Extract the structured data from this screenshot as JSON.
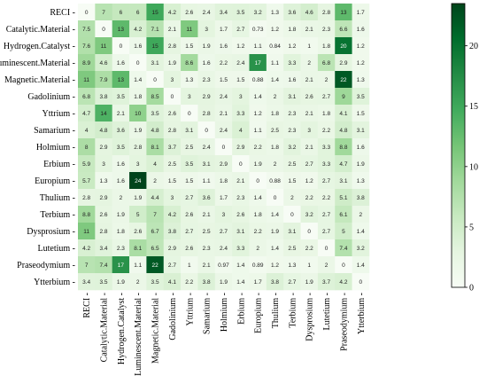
{
  "chart_data": {
    "type": "heatmap",
    "title": "",
    "xlabel": "",
    "ylabel": "",
    "labels": [
      "RECI",
      "Catalytic.Material",
      "Hydrogen.Catalyst",
      "Luminescent.Material",
      "Magnetic.Material",
      "Gadolinium",
      "Yttrium",
      "Samarium",
      "Holmium",
      "Erbium",
      "Europium",
      "Thulium",
      "Terbium",
      "Dysprosium",
      "Lutetium",
      "Praseodymium",
      "Ytterbium"
    ],
    "values": [
      [
        "0",
        "7",
        "6",
        "6",
        "15",
        "4.2",
        "2.6",
        "2.4",
        "3.4",
        "3.5",
        "3.2",
        "1.3",
        "3.6",
        "4.6",
        "2.8",
        "13",
        "1.7"
      ],
      [
        "7.5",
        "0",
        "13",
        "4.2",
        "7.1",
        "2.1",
        "11",
        "3",
        "1.7",
        "2.7",
        "0.73",
        "1.2",
        "1.8",
        "2.1",
        "2.3",
        "6.6",
        "1.6"
      ],
      [
        "7.6",
        "11",
        "0",
        "1.6",
        "15",
        "2.8",
        "1.5",
        "1.9",
        "1.6",
        "1.2",
        "1.1",
        "0.84",
        "1.2",
        "1",
        "1.8",
        "20",
        "1.2"
      ],
      [
        "8.9",
        "4.6",
        "1.6",
        "0",
        "3.1",
        "1.9",
        "8.6",
        "1.6",
        "2.2",
        "2.4",
        "17",
        "1.1",
        "3.3",
        "2",
        "6.8",
        "2.9",
        "1.2"
      ],
      [
        "11",
        "7.9",
        "13",
        "1.4",
        "0",
        "3",
        "1.3",
        "2.3",
        "1.5",
        "1.5",
        "0.88",
        "1.4",
        "1.6",
        "2.1",
        "2",
        "22",
        "1.3"
      ],
      [
        "6.8",
        "3.8",
        "3.5",
        "1.8",
        "8.5",
        "0",
        "3",
        "2.9",
        "2.4",
        "3",
        "1.4",
        "2",
        "3.1",
        "2.6",
        "2.7",
        "9",
        "3.5"
      ],
      [
        "4.7",
        "14",
        "2.1",
        "10",
        "3.5",
        "2.6",
        "0",
        "2.8",
        "2.1",
        "3.3",
        "1.2",
        "1.8",
        "2.3",
        "2.1",
        "1.8",
        "4.1",
        "1.5"
      ],
      [
        "4",
        "4.8",
        "3.6",
        "1.9",
        "4.8",
        "2.8",
        "3.1",
        "0",
        "2.4",
        "4",
        "1.1",
        "2.5",
        "2.3",
        "3",
        "2.2",
        "4.8",
        "3.1"
      ],
      [
        "8",
        "2.9",
        "3.5",
        "2.8",
        "8.1",
        "3.7",
        "2.5",
        "2.4",
        "0",
        "2.9",
        "2.2",
        "1.8",
        "3.2",
        "2.1",
        "3.3",
        "8.8",
        "1.6"
      ],
      [
        "5.9",
        "3",
        "1.6",
        "3",
        "4",
        "2.5",
        "3.5",
        "3.1",
        "2.9",
        "0",
        "1.9",
        "2",
        "2.5",
        "2.7",
        "3.3",
        "4.7",
        "1.9"
      ],
      [
        "5.7",
        "1.3",
        "1.6",
        "24",
        "2",
        "1.5",
        "1.5",
        "1.1",
        "1.8",
        "2.1",
        "0",
        "0.88",
        "1.5",
        "1.2",
        "2.7",
        "3.1",
        "1.3"
      ],
      [
        "2.8",
        "2.9",
        "2",
        "1.9",
        "4.4",
        "3",
        "2.7",
        "3.6",
        "1.7",
        "2.3",
        "1.4",
        "0",
        "2",
        "2.2",
        "2.2",
        "5.1",
        "3.8"
      ],
      [
        "8.8",
        "2.6",
        "1.9",
        "5",
        "7",
        "4.2",
        "2.6",
        "2.1",
        "3",
        "2.6",
        "1.8",
        "1.4",
        "0",
        "3.2",
        "2.7",
        "6.1",
        "2"
      ],
      [
        "11",
        "2.8",
        "1.8",
        "2.6",
        "6.7",
        "3.8",
        "2.7",
        "2.5",
        "2.7",
        "3.1",
        "2.2",
        "1.9",
        "3.1",
        "0",
        "2.7",
        "5",
        "1.4"
      ],
      [
        "4.2",
        "3.4",
        "2.3",
        "8.1",
        "6.5",
        "2.9",
        "2.6",
        "2.3",
        "2.4",
        "3.3",
        "2",
        "1.4",
        "2.5",
        "2.2",
        "0",
        "7.4",
        "3.2"
      ],
      [
        "7",
        "7.4",
        "17",
        "1.1",
        "22",
        "2.7",
        "1",
        "2.1",
        "0.97",
        "1.4",
        "0.89",
        "1.2",
        "1.3",
        "1",
        "2",
        "0",
        "1.4"
      ],
      [
        "3.4",
        "3.5",
        "1.9",
        "2",
        "3.5",
        "4.1",
        "2.2",
        "3.8",
        "1.9",
        "1.4",
        "1.7",
        "3.8",
        "2.7",
        "1.9",
        "3.7",
        "4.2",
        "0"
      ]
    ],
    "colorbar": {
      "min": 0,
      "max": 23.5,
      "ticks": [
        0,
        5,
        10,
        15,
        20
      ]
    },
    "colors": {
      "low": "#f7fcf5",
      "high": "#00441b"
    },
    "colormap": "Greens",
    "grid": false,
    "legend": "colorbar-right"
  }
}
